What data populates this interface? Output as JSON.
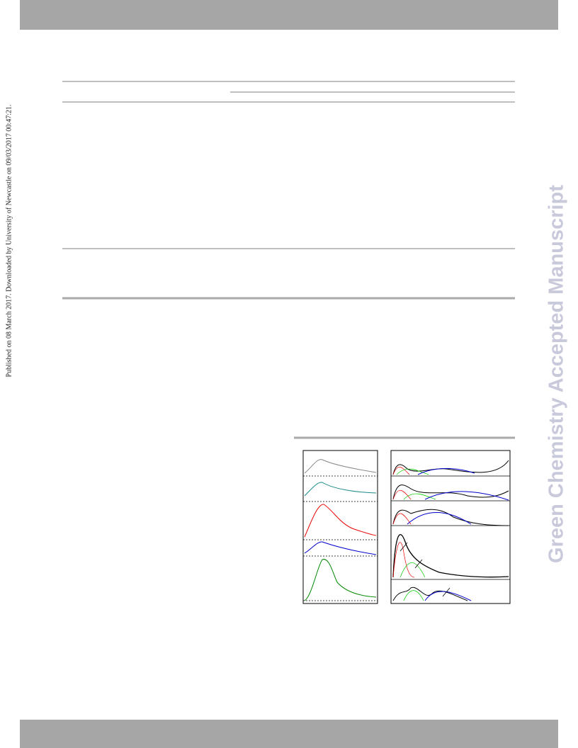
{
  "sidebar_note": "Published on 08 March 2017. Downloaded by University of Newcastle on 09/03/2017 00:47:21.",
  "watermark": "Green Chemistry Accepted Manuscript"
}
